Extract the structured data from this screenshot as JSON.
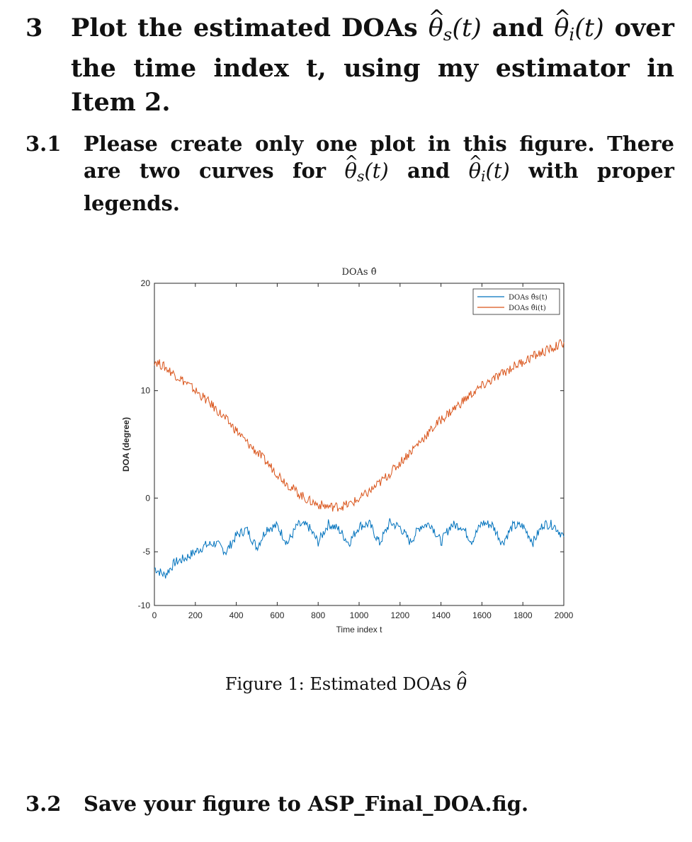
{
  "section_3": {
    "number": "3",
    "line1_pre": "Plot the estimated DOAs",
    "and": "and",
    "line1_post": "over the time index t, using my estimator in Item 2."
  },
  "section_3_1": {
    "number": "3.1",
    "part1": "Please create only one plot in this figure. There are two curves for",
    "and": "and",
    "part2": "with proper legends."
  },
  "math": {
    "theta": "θ",
    "hat": "^",
    "sub_s": "s",
    "sub_i": "i",
    "of_t": "(t)"
  },
  "caption": {
    "label": "Figure 1:",
    "text": "Estimated DOAs"
  },
  "section_3_2": {
    "number": "3.2",
    "text": "Save your figure to ASP_Final_DOA.fig."
  },
  "chart_data": {
    "type": "line",
    "title": "DOAs θ̂",
    "xlabel": "Time index t",
    "ylabel": "DOA (degree)",
    "xlim": [
      0,
      2000
    ],
    "ylim": [
      -10,
      20
    ],
    "xticks": [
      0,
      200,
      400,
      600,
      800,
      1000,
      1200,
      1400,
      1600,
      1800,
      2000
    ],
    "yticks": [
      -10,
      -5,
      0,
      10,
      20
    ],
    "grid": false,
    "legend_position": "top-right",
    "series": [
      {
        "name": "DOAs θ̂s(t)",
        "color": "#0072BD",
        "x": [
          0,
          50,
          100,
          150,
          200,
          250,
          300,
          350,
          400,
          450,
          500,
          550,
          600,
          650,
          700,
          750,
          800,
          850,
          900,
          950,
          1000,
          1050,
          1100,
          1150,
          1200,
          1250,
          1300,
          1350,
          1400,
          1450,
          1500,
          1550,
          1600,
          1650,
          1700,
          1750,
          1800,
          1850,
          1900,
          1950,
          2000
        ],
        "values": [
          -6.5,
          -7.2,
          -6.0,
          -5.6,
          -5.0,
          -4.4,
          -4.2,
          -5.0,
          -3.5,
          -2.9,
          -4.6,
          -2.8,
          -2.6,
          -4.2,
          -2.5,
          -2.6,
          -4.1,
          -2.4,
          -2.9,
          -4.2,
          -2.6,
          -2.4,
          -4.2,
          -2.3,
          -2.7,
          -4.1,
          -2.6,
          -2.4,
          -4.1,
          -2.5,
          -2.6,
          -4.0,
          -2.3,
          -2.5,
          -4.2,
          -2.6,
          -2.6,
          -4.1,
          -2.4,
          -2.5,
          -3.6
        ]
      },
      {
        "name": "DOAs θ̂i(t)",
        "color": "#D95319",
        "x": [
          0,
          50,
          100,
          150,
          200,
          250,
          300,
          350,
          400,
          450,
          500,
          550,
          600,
          650,
          700,
          750,
          800,
          850,
          900,
          950,
          1000,
          1050,
          1100,
          1150,
          1200,
          1250,
          1300,
          1350,
          1400,
          1450,
          1500,
          1550,
          1600,
          1650,
          1700,
          1750,
          1800,
          1850,
          1900,
          1950,
          2000
        ],
        "values": [
          12.8,
          12.2,
          11.5,
          10.8,
          10.0,
          9.2,
          8.3,
          7.3,
          6.3,
          5.2,
          4.3,
          3.3,
          2.3,
          1.3,
          0.5,
          -0.2,
          -0.6,
          -0.8,
          -0.8,
          -0.6,
          -0.1,
          0.6,
          1.4,
          2.3,
          3.3,
          4.3,
          5.3,
          6.3,
          7.3,
          8.1,
          8.9,
          9.7,
          10.4,
          11.0,
          11.6,
          12.2,
          12.7,
          13.2,
          13.6,
          14.0,
          14.5
        ]
      }
    ]
  }
}
